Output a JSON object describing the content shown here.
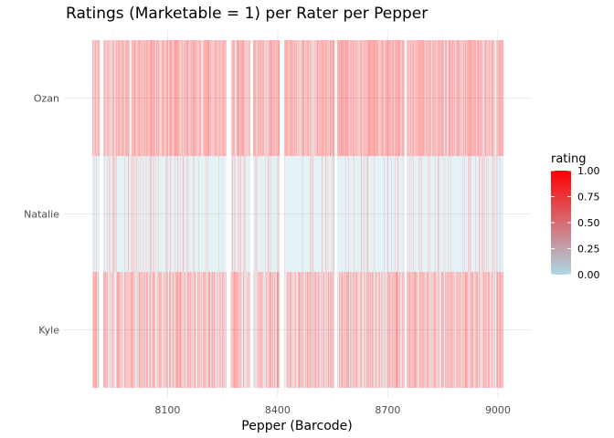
{
  "chart_data": {
    "type": "heatmap",
    "title": "Ratings (Marketable = 1) per Rater per Pepper",
    "xlabel": "Pepper (Barcode)",
    "ylabel": "",
    "x_range": [
      7880,
      9030
    ],
    "x_ticks": [
      8100,
      8400,
      8700,
      9000
    ],
    "x_tick_labels": [
      "8100",
      "8400",
      "8700",
      "9000"
    ],
    "raters": [
      "Kyle",
      "Natalie",
      "Ozan"
    ],
    "missing_barcode_gaps": [
      [
        7915,
        7925
      ],
      [
        8260,
        8272
      ],
      [
        8325,
        8333
      ],
      [
        8405,
        8418
      ],
      [
        8555,
        8562
      ],
      [
        8745,
        8752
      ],
      [
        9016,
        9030
      ]
    ],
    "rating_key": "rating",
    "legend": {
      "title": "rating",
      "labels": [
        "1.00",
        "0.75",
        "0.50",
        "0.25",
        "0.00"
      ],
      "values": [
        1.0,
        0.75,
        0.5,
        0.25,
        0.0
      ],
      "color_low": "#add8e6",
      "color_high": "#ff0000"
    },
    "cell_opacity": 0.25,
    "barcode_step": 1,
    "seeds": {
      "Kyle": 101,
      "Natalie": 202,
      "Ozan": 303
    },
    "marketable_share": {
      "Kyle": 0.62,
      "Natalie": 0.12,
      "Ozan": 0.78
    },
    "grid": true
  }
}
